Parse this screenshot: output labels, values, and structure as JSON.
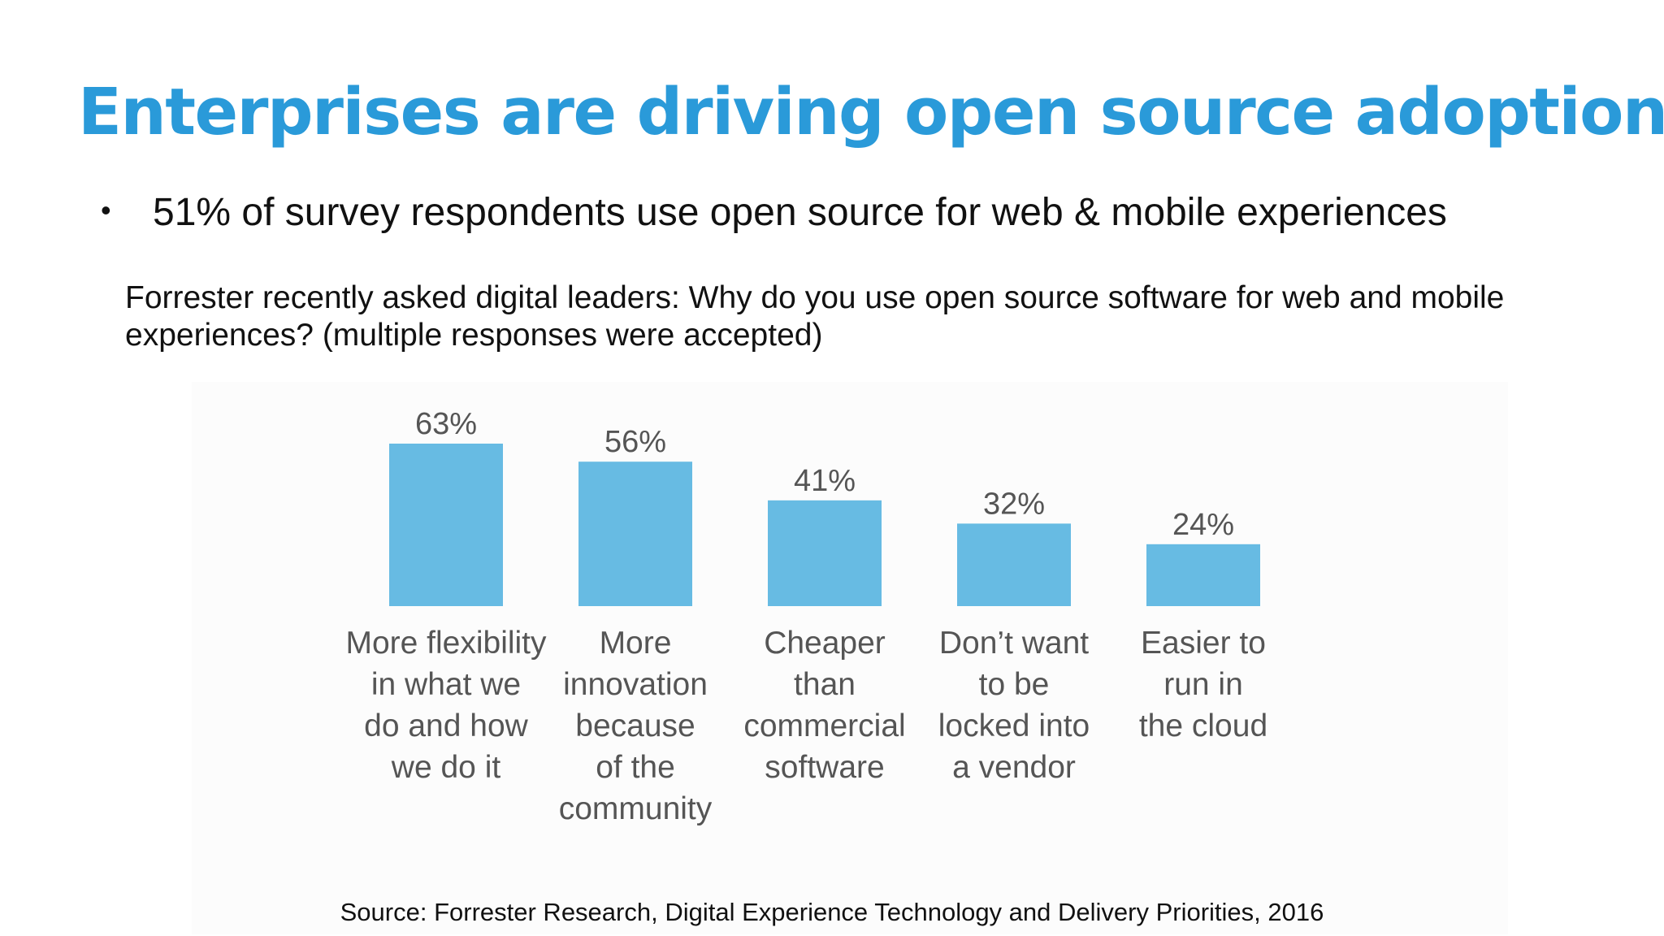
{
  "slide": {
    "title": "Enterprises are driving open source adoption",
    "bullet_symbol": "•",
    "bullet_text": "51% of survey respondents use open source for web & mobile experiences",
    "question": "Forrester recently asked digital leaders: Why do you use open source software for web and mobile experiences? (multiple responses were accepted)",
    "source": "Source: Forrester Research, Digital Experience Technology and Delivery Priorities, 2016"
  },
  "colors": {
    "title": "#2a9ad9",
    "bar": "#67bbe3",
    "chart_text": "#555555",
    "body_text": "#111111"
  },
  "chart_data": {
    "type": "bar",
    "categories": [
      "More flexibility in what we do and how we do it",
      "More innovation because of the community",
      "Cheaper than commercial software",
      "Don’t want to be locked into a vendor",
      "Easier to run in the cloud"
    ],
    "category_lines": [
      [
        "More flexibility",
        "in what we",
        "do and how",
        "we do it"
      ],
      [
        "More",
        "innovation",
        "because",
        "of the",
        "community"
      ],
      [
        "Cheaper",
        "than",
        "commercial",
        "software"
      ],
      [
        "Don’t want",
        "to be",
        "locked into",
        "a vendor"
      ],
      [
        "Easier to",
        "run in",
        "the cloud"
      ]
    ],
    "values": [
      63,
      56,
      41,
      32,
      24
    ],
    "data_labels": [
      "63%",
      "56%",
      "41%",
      "32%",
      "24%"
    ],
    "unit": "%",
    "title": "",
    "xlabel": "",
    "ylabel": "",
    "ylim": [
      0,
      63
    ],
    "grid": false,
    "legend": "none"
  }
}
